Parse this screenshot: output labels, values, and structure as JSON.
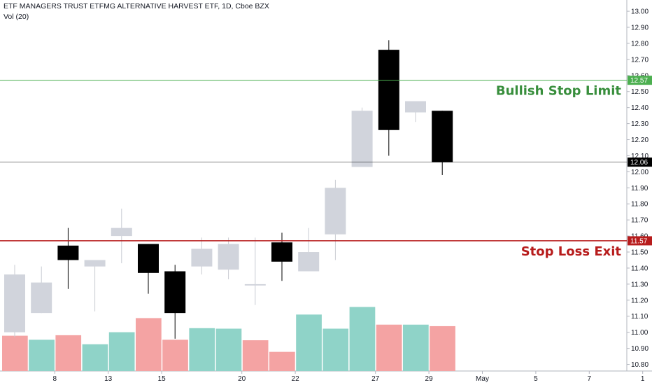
{
  "header": {
    "title": "ETF MANAGERS TRUST ETFMG ALTERNATIVE HARVEST ETF, 1D, Cboe BZX",
    "volume_label": "Vol (20)"
  },
  "colors": {
    "bull_candle": "#d1d4dc",
    "bear_candle": "#000000",
    "vol_up": "#8fd3c8",
    "vol_down": "#f4a3a3",
    "bullish_line": "#4caf50",
    "bullish_text": "#388e3c",
    "stop_line": "#b71c1c",
    "stop_text": "#b71c1c",
    "last_price_tag": "#000000"
  },
  "chart_data": {
    "type": "candlestick",
    "title": "ETF MANAGERS TRUST ETFMG ALTERNATIVE HARVEST ETF, 1D, Cboe BZX",
    "y_axis": {
      "ylim": [
        10.75,
        13.02
      ],
      "ticks": [
        "13.00",
        "12.90",
        "12.80",
        "12.70",
        "12.60",
        "12.50",
        "12.40",
        "12.30",
        "12.20",
        "12.10",
        "12.00",
        "11.90",
        "11.80",
        "11.70",
        "11.60",
        "11.50",
        "11.40",
        "11.30",
        "11.20",
        "11.10",
        "11.00",
        "10.90",
        "10.80"
      ]
    },
    "x_axis": {
      "ticks": [
        {
          "label": "8",
          "i": 1.5
        },
        {
          "label": "13",
          "i": 3.5
        },
        {
          "label": "15",
          "i": 5.5
        },
        {
          "label": "20",
          "i": 8.5
        },
        {
          "label": "22",
          "i": 10.5
        },
        {
          "label": "27",
          "i": 13.5
        },
        {
          "label": "29",
          "i": 15.5
        },
        {
          "label": "May",
          "i": 17.5
        },
        {
          "label": "5",
          "i": 19.5
        },
        {
          "label": "7",
          "i": 21.5
        },
        {
          "label": "1",
          "i": 23.5
        }
      ]
    },
    "candles": [
      {
        "o": 11.0,
        "h": 11.42,
        "l": 10.97,
        "c": 11.36
      },
      {
        "o": 11.12,
        "h": 11.41,
        "l": 11.12,
        "c": 11.31
      },
      {
        "o": 11.54,
        "h": 11.65,
        "l": 11.27,
        "c": 11.45
      },
      {
        "o": 11.41,
        "h": 11.45,
        "l": 11.13,
        "c": 11.45
      },
      {
        "o": 11.6,
        "h": 11.77,
        "l": 11.43,
        "c": 11.65
      },
      {
        "o": 11.55,
        "h": 11.55,
        "l": 11.24,
        "c": 11.37
      },
      {
        "o": 11.38,
        "h": 11.42,
        "l": 10.96,
        "c": 11.12
      },
      {
        "o": 11.41,
        "h": 11.59,
        "l": 11.36,
        "c": 11.52
      },
      {
        "o": 11.39,
        "h": 11.59,
        "l": 11.33,
        "c": 11.55
      },
      {
        "o": 11.3,
        "h": 11.59,
        "l": 11.17,
        "c": 11.3
      },
      {
        "o": 11.56,
        "h": 11.62,
        "l": 11.32,
        "c": 11.44
      },
      {
        "o": 11.38,
        "h": 11.65,
        "l": 11.38,
        "c": 11.5
      },
      {
        "o": 11.61,
        "h": 11.95,
        "l": 11.45,
        "c": 11.9
      },
      {
        "o": 12.03,
        "h": 12.4,
        "l": 12.03,
        "c": 12.38
      },
      {
        "o": 12.76,
        "h": 12.82,
        "l": 12.1,
        "c": 12.26
      },
      {
        "o": 12.37,
        "h": 12.44,
        "l": 12.31,
        "c": 12.44
      },
      {
        "o": 12.38,
        "h": 12.38,
        "l": 11.98,
        "c": 12.06
      }
    ],
    "volume": [
      {
        "v": 0.7,
        "dir": "down"
      },
      {
        "v": 0.62,
        "dir": "up"
      },
      {
        "v": 0.71,
        "dir": "down"
      },
      {
        "v": 0.53,
        "dir": "up"
      },
      {
        "v": 0.77,
        "dir": "up"
      },
      {
        "v": 1.05,
        "dir": "down"
      },
      {
        "v": 0.62,
        "dir": "down"
      },
      {
        "v": 0.85,
        "dir": "up"
      },
      {
        "v": 0.84,
        "dir": "up"
      },
      {
        "v": 0.61,
        "dir": "down"
      },
      {
        "v": 0.38,
        "dir": "down"
      },
      {
        "v": 1.12,
        "dir": "up"
      },
      {
        "v": 0.84,
        "dir": "up"
      },
      {
        "v": 1.27,
        "dir": "up"
      },
      {
        "v": 0.92,
        "dir": "down"
      },
      {
        "v": 0.92,
        "dir": "up"
      },
      {
        "v": 0.89,
        "dir": "down"
      }
    ],
    "horizontal_lines": [
      {
        "name": "bullish-stop-limit",
        "value": 12.57,
        "label": "12.57",
        "annotation": "Bullish Stop Limit",
        "color_key": "bullish_line",
        "text_color_key": "bullish_text",
        "width": 1
      },
      {
        "name": "last-price",
        "value": 12.06,
        "label": "12.06",
        "annotation": "",
        "color_key": "last_price_tag",
        "text_color_key": "last_price_tag",
        "width": 0.6
      },
      {
        "name": "stop-loss-exit",
        "value": 11.57,
        "label": "11.57",
        "annotation": "Stop Loss Exit",
        "color_key": "stop_line",
        "text_color_key": "stop_text",
        "width": 1.6
      }
    ]
  }
}
